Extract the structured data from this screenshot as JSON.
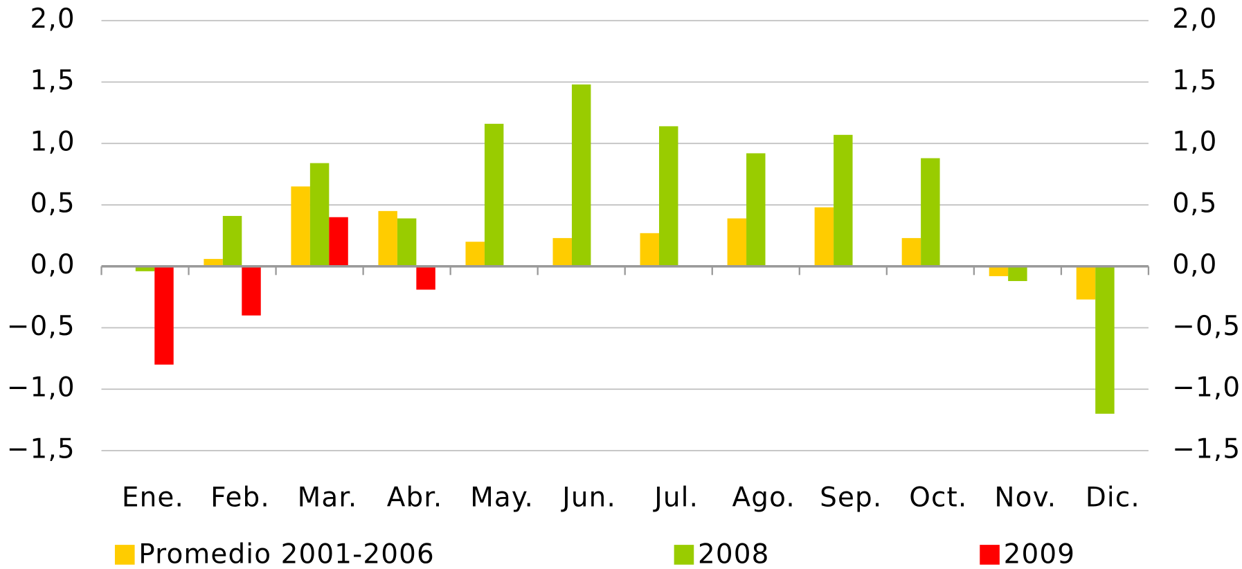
{
  "chart_data": {
    "type": "bar",
    "categories": [
      "Ene.",
      "Feb.",
      "Mar.",
      "Abr.",
      "May.",
      "Jun.",
      "Jul.",
      "Ago.",
      "Sep.",
      "Oct.",
      "Nov.",
      "Dic."
    ],
    "series": [
      {
        "name": "Promedio 2001-2006",
        "color": "#ffcc00",
        "values": [
          -0.01,
          0.06,
          0.65,
          0.45,
          0.2,
          0.23,
          0.27,
          0.39,
          0.48,
          0.23,
          -0.08,
          -0.27
        ]
      },
      {
        "name": "2008",
        "color": "#99cc00",
        "values": [
          -0.04,
          0.41,
          0.84,
          0.39,
          1.16,
          1.48,
          1.14,
          0.92,
          1.07,
          0.88,
          -0.12,
          -1.2
        ]
      },
      {
        "name": "2009",
        "color": "#ff0000",
        "values": [
          -0.8,
          -0.4,
          0.4,
          -0.19,
          null,
          null,
          null,
          null,
          null,
          null,
          null,
          null
        ]
      }
    ],
    "ylim": [
      -1.5,
      2.0
    ],
    "yticks": [
      {
        "value": -1.5,
        "label": "−1,5"
      },
      {
        "value": -1.0,
        "label": "−1,0"
      },
      {
        "value": -0.5,
        "label": "−0,5"
      },
      {
        "value": 0,
        "label": "0,0"
      },
      {
        "value": 0.5,
        "label": "0,5"
      },
      {
        "value": 1.0,
        "label": "1,0"
      },
      {
        "value": 1.5,
        "label": "1,5"
      },
      {
        "value": 2.0,
        "label": "2,0"
      }
    ],
    "y2lim": [
      -1.5,
      2.0
    ],
    "y2ticks": [
      {
        "value": -1.5,
        "label": "−1,5"
      },
      {
        "value": -1.0,
        "label": "−1,0"
      },
      {
        "value": -0.5,
        "label": "−0,5"
      },
      {
        "value": 0,
        "label": "0,0"
      },
      {
        "value": 0.5,
        "label": "0,5"
      },
      {
        "value": 1.0,
        "label": "1,0"
      },
      {
        "value": 1.5,
        "label": "1,5"
      },
      {
        "value": 2.0,
        "label": "2,0"
      }
    ],
    "grid": true,
    "legend": "bottom"
  }
}
